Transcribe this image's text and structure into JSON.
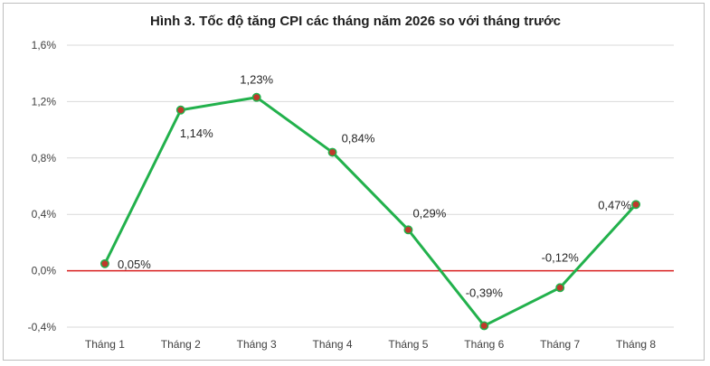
{
  "chart_data": {
    "type": "line",
    "title": "Hình 3. Tốc độ tăng CPI các tháng năm 2026 so với tháng trước",
    "categories": [
      "Tháng 1",
      "Tháng 2",
      "Tháng 3",
      "Tháng 4",
      "Tháng 5",
      "Tháng 6",
      "Tháng 7",
      "Tháng 8"
    ],
    "values": [
      0.05,
      1.14,
      1.23,
      0.84,
      0.29,
      -0.39,
      -0.12,
      0.47
    ],
    "data_labels": [
      "0,05%",
      "1,14%",
      "1,23%",
      "0,84%",
      "0,29%",
      "-0,39%",
      "-0,12%",
      "0,47%"
    ],
    "ylim": [
      -0.4,
      1.6
    ],
    "yticks": [
      -0.4,
      0.0,
      0.4,
      0.8,
      1.2,
      1.6
    ],
    "ytick_labels": [
      "-0,4%",
      "0,0%",
      "0,4%",
      "0,8%",
      "1,2%",
      "1,6%"
    ],
    "xlabel": "",
    "ylabel": "",
    "grid": true,
    "legend": "none",
    "colors": {
      "line": "#22b14c",
      "marker_fill": "#c0392b",
      "zero_line": "#d81e1e",
      "grid": "#d9d9d9"
    }
  }
}
